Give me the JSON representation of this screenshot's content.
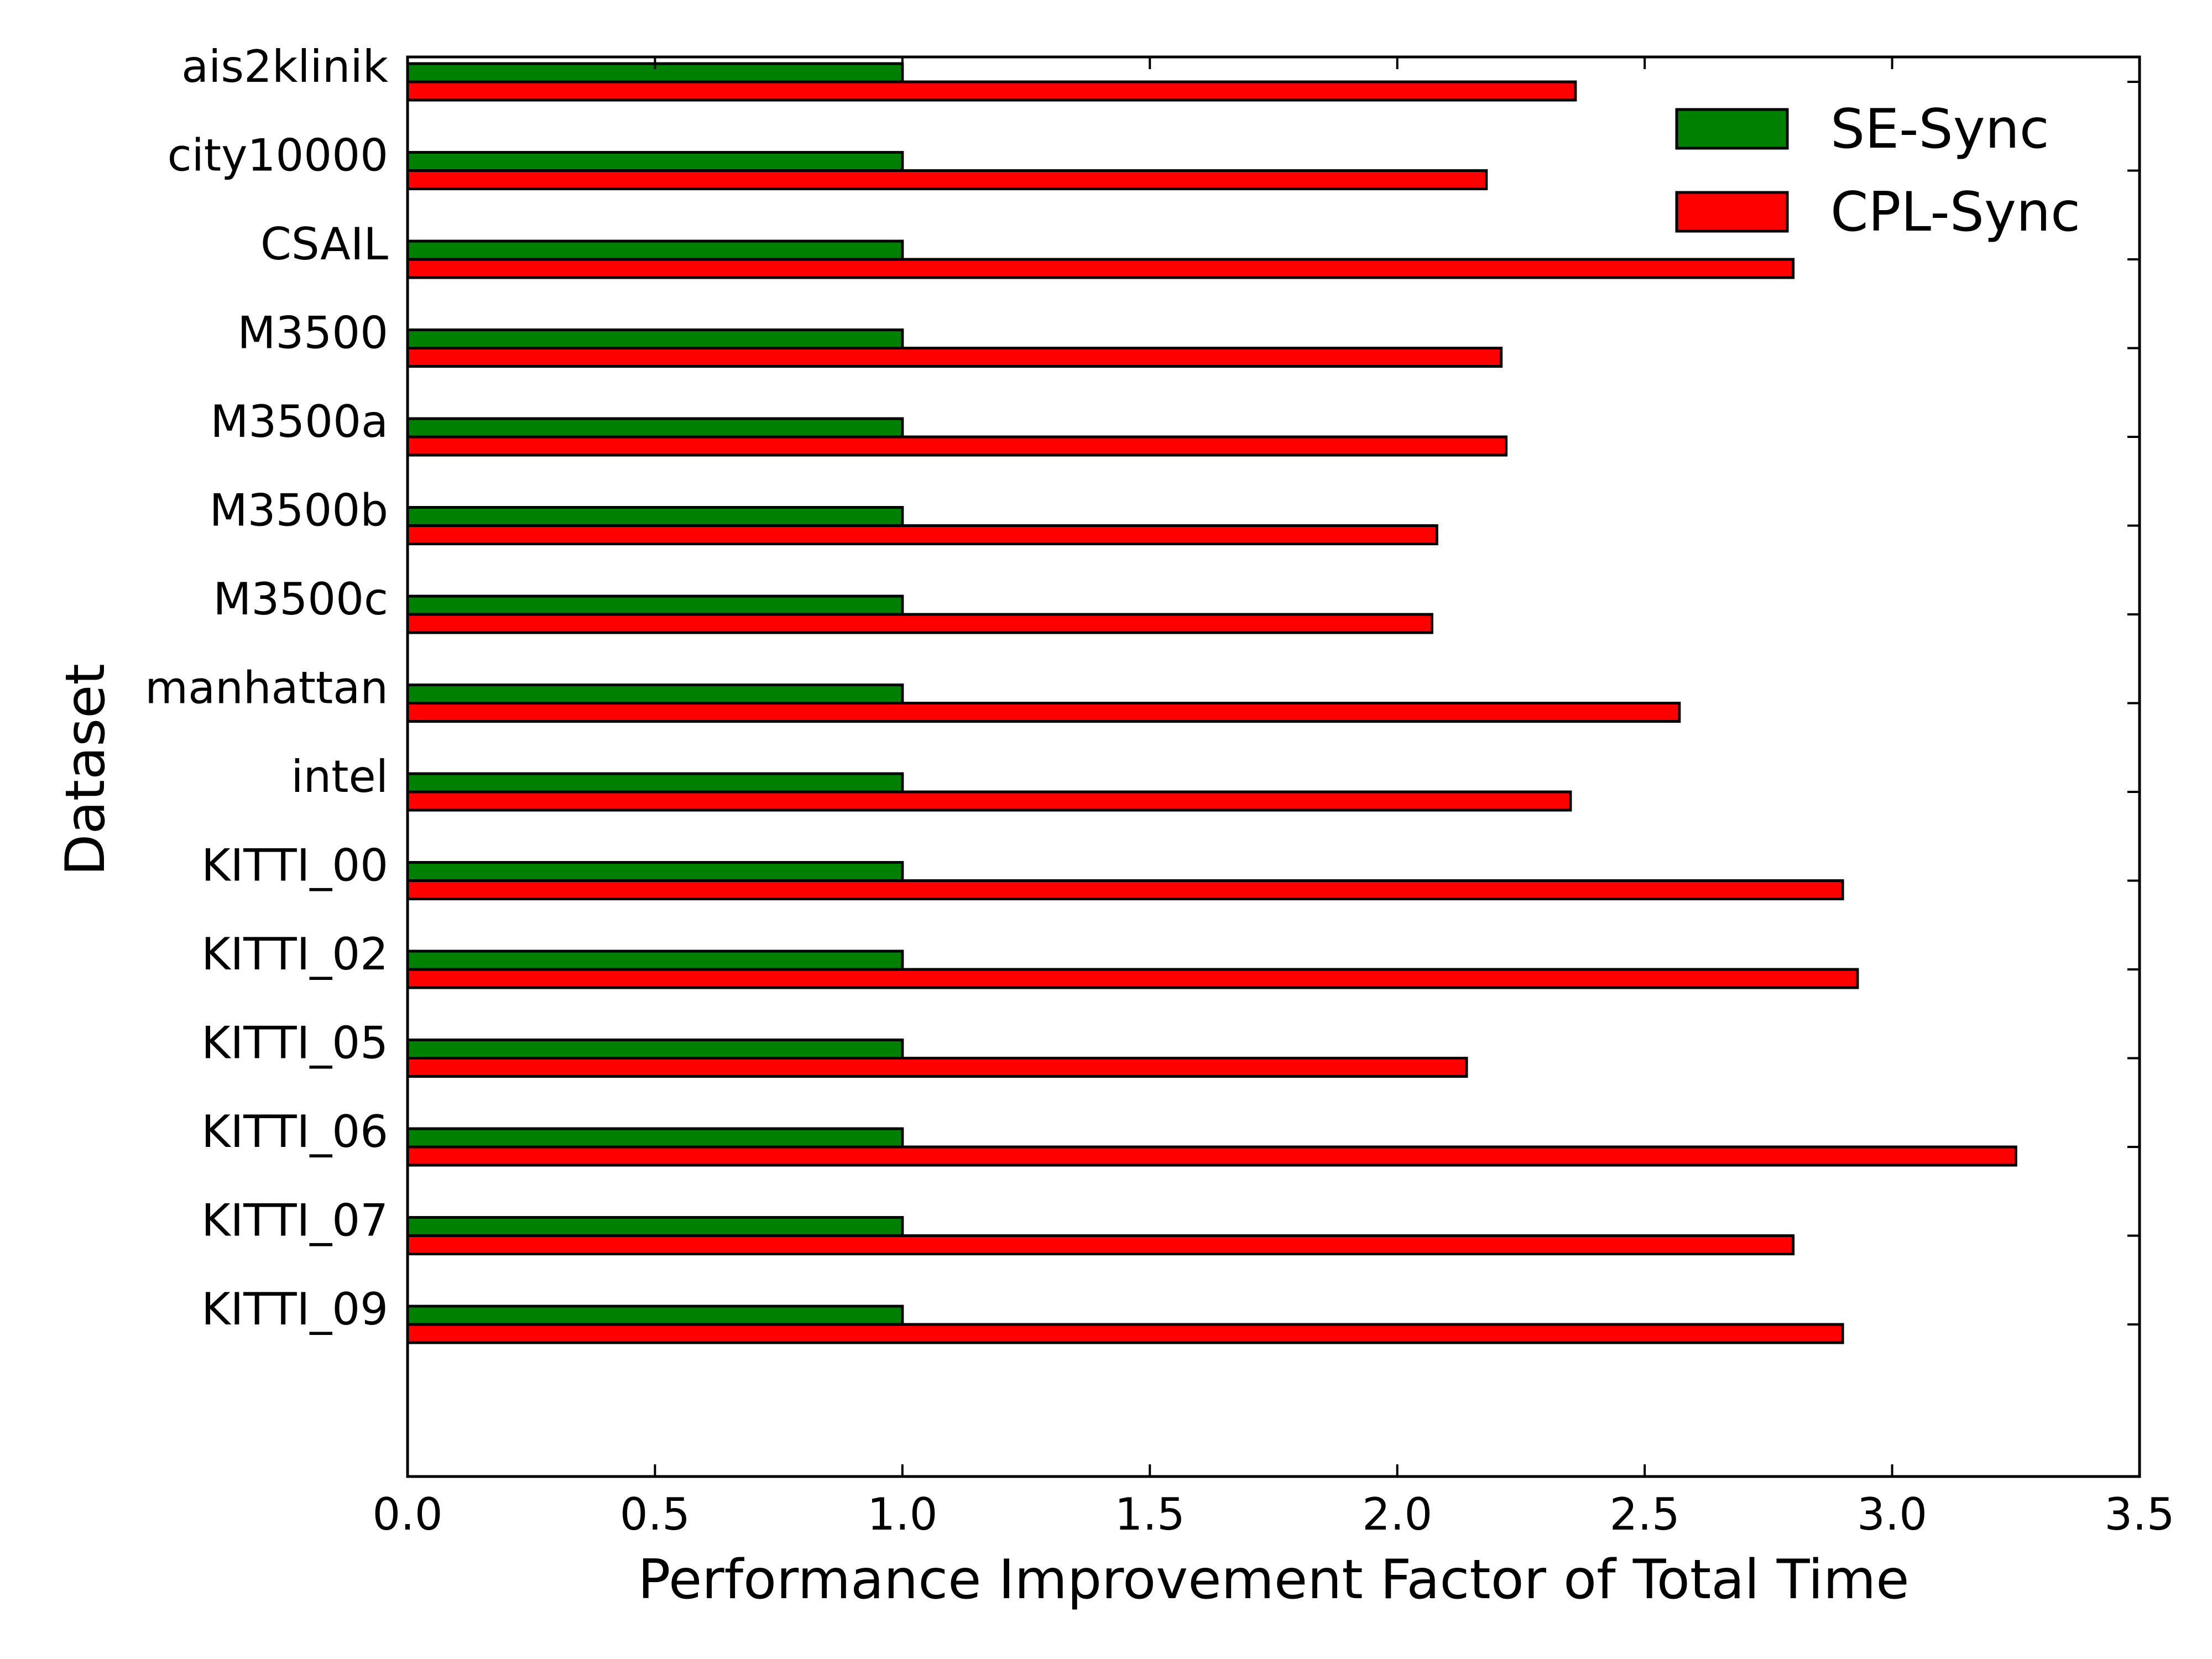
{
  "chart_data": {
    "type": "bar",
    "orientation": "horizontal",
    "title": "",
    "xlabel": "Performance Improvement Factor of Total Time",
    "ylabel": "Dataset",
    "xlim": [
      0,
      3.5
    ],
    "xticks": [
      "0.0",
      "0.5",
      "1.0",
      "1.5",
      "2.0",
      "2.5",
      "3.0",
      "3.5"
    ],
    "grid": false,
    "legend_position": "top-right",
    "categories": [
      "ais2klinik",
      "city10000",
      "CSAIL",
      "M3500",
      "M3500a",
      "M3500b",
      "M3500c",
      "manhattan",
      "intel",
      "KITTI_00",
      "KITTI_02",
      "KITTI_05",
      "KITTI_06",
      "KITTI_07",
      "KITTI_09"
    ],
    "series": [
      {
        "name": "SE-Sync",
        "color": "#008000",
        "values": [
          1.0,
          1.0,
          1.0,
          1.0,
          1.0,
          1.0,
          1.0,
          1.0,
          1.0,
          1.0,
          1.0,
          1.0,
          1.0,
          1.0,
          1.0
        ]
      },
      {
        "name": "CPL-Sync",
        "color": "#ff0000",
        "values": [
          2.36,
          2.18,
          2.8,
          2.21,
          2.22,
          2.08,
          2.07,
          2.57,
          2.35,
          2.9,
          2.93,
          2.14,
          3.25,
          2.8,
          2.9
        ]
      }
    ]
  }
}
